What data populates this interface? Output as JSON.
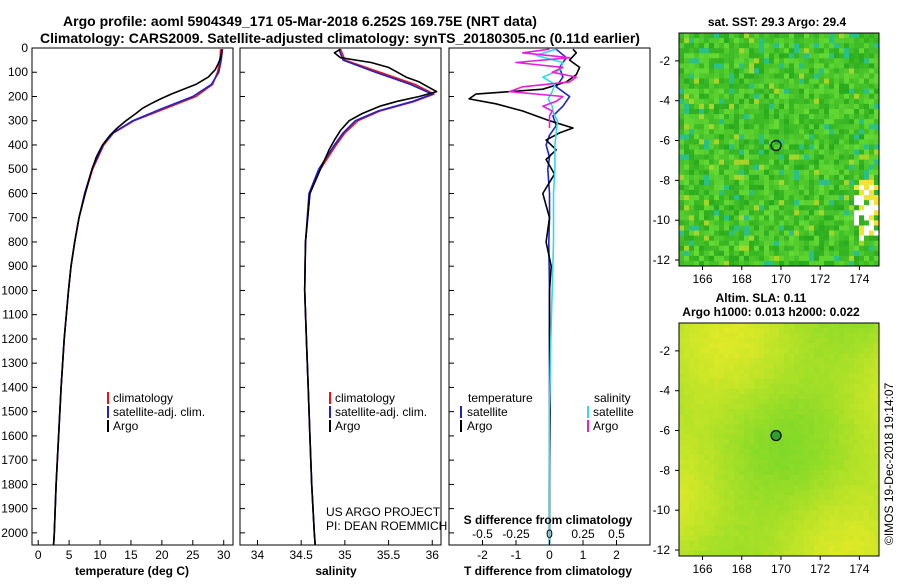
{
  "header": {
    "line1": "Argo profile: aoml 5904349_171 05-Mar-2018 6.252S 169.75E (NRT data)",
    "line2": "Climatology: CARS2009. Satellite-adjusted climatology: synTS_20180305.nc (0.11d earlier)"
  },
  "colors": {
    "climatology": "#ee1111",
    "satellite": "#1f22cc",
    "argo": "#000000",
    "sal_satellite": "#33d9e6",
    "sal_argo": "#e61fd9"
  },
  "notes": {
    "project": "US ARGO PROJECT",
    "pi": "PI: DEAN ROEMMICH",
    "stamp": "©IMOS 19-Dec-2018 19:14:07"
  },
  "chart_data": [
    {
      "id": "temperature",
      "type": "line",
      "xlabel": "temperature (deg C)",
      "ylabel": "",
      "xlim": [
        -1,
        31.5
      ],
      "ylim": [
        2050,
        0
      ],
      "xticks": [
        "0",
        "5",
        "10",
        "15",
        "20",
        "25",
        "30"
      ],
      "yticks": [
        "0",
        "100",
        "200",
        "300",
        "400",
        "500",
        "600",
        "700",
        "800",
        "900",
        "1000",
        "1100",
        "1200",
        "1300",
        "1400",
        "1500",
        "1600",
        "1700",
        "1800",
        "1900",
        "2000"
      ],
      "legend": [
        "climatology",
        "satellite-adj. clim.",
        "Argo"
      ],
      "series": [
        {
          "name": "climatology",
          "depth": [
            5,
            50,
            100,
            150,
            200,
            250,
            300,
            350,
            400,
            500,
            600,
            700,
            800,
            900,
            1000,
            1200,
            1400,
            1600,
            1800,
            2000,
            2050
          ],
          "values": [
            29.5,
            29.4,
            29,
            28.2,
            25.5,
            20.5,
            15.5,
            12.2,
            10.6,
            8.8,
            7.6,
            6.6,
            5.9,
            5.3,
            4.9,
            4.2,
            3.7,
            3.3,
            2.9,
            2.6,
            2.5
          ]
        },
        {
          "name": "satellite-adj. clim.",
          "depth": [
            5,
            50,
            100,
            150,
            200,
            250,
            300,
            350,
            400,
            500,
            600,
            700,
            800,
            900,
            1000,
            1200,
            1400,
            1600,
            1800,
            2000,
            2050
          ],
          "values": [
            29.8,
            29.6,
            29.2,
            28,
            25,
            20,
            15.3,
            12.1,
            10.5,
            8.7,
            7.5,
            6.6,
            5.9,
            5.3,
            4.9,
            4.2,
            3.7,
            3.3,
            2.9,
            2.6,
            2.5
          ]
        },
        {
          "name": "Argo",
          "depth": [
            5,
            30,
            60,
            90,
            120,
            150,
            170,
            190,
            210,
            230,
            250,
            270,
            300,
            330,
            360,
            400,
            450,
            500,
            600,
            700,
            800,
            900,
            1000,
            1200,
            1400,
            1600,
            1800,
            2000,
            2050
          ],
          "values": [
            29.7,
            29.6,
            29.2,
            28.6,
            27.5,
            25.5,
            23.5,
            21.5,
            19.8,
            18.2,
            16.8,
            15.8,
            14.2,
            12.8,
            11.6,
            10.4,
            9.4,
            8.7,
            7.6,
            6.6,
            5.9,
            5.3,
            4.9,
            4.2,
            3.7,
            3.3,
            2.9,
            2.6,
            2.5
          ]
        }
      ]
    },
    {
      "id": "salinity",
      "type": "line",
      "xlabel": "salinity",
      "ylabel": "",
      "xlim": [
        33.8,
        36.1
      ],
      "ylim": [
        2050,
        0
      ],
      "xticks": [
        "34",
        "34.5",
        "35",
        "35.5",
        "36"
      ],
      "legend": [
        "climatology",
        "satellite-adj. clim.",
        "Argo"
      ],
      "series": [
        {
          "name": "climatology",
          "depth": [
            5,
            50,
            100,
            150,
            190,
            220,
            260,
            300,
            350,
            400,
            500,
            600,
            800,
            1000,
            1200,
            1400,
            1600,
            1800,
            2000,
            2050
          ],
          "values": [
            34.95,
            35.0,
            35.4,
            35.8,
            36.02,
            35.8,
            35.4,
            35.15,
            35.0,
            34.9,
            34.72,
            34.6,
            34.55,
            34.54,
            34.56,
            34.58,
            34.6,
            34.62,
            34.65,
            34.66
          ]
        },
        {
          "name": "satellite-adj. clim.",
          "depth": [
            5,
            50,
            100,
            150,
            190,
            220,
            260,
            300,
            350,
            400,
            500,
            600,
            800,
            1000,
            1200,
            1400,
            1600,
            1800,
            2000,
            2050
          ],
          "values": [
            34.93,
            34.98,
            35.35,
            35.75,
            36.0,
            35.78,
            35.38,
            35.12,
            34.98,
            34.88,
            34.7,
            34.59,
            34.55,
            34.54,
            34.56,
            34.58,
            34.6,
            34.62,
            34.65,
            34.66
          ]
        },
        {
          "name": "Argo",
          "depth": [
            5,
            20,
            40,
            60,
            80,
            100,
            120,
            140,
            160,
            180,
            200,
            220,
            240,
            270,
            300,
            340,
            380,
            420,
            500,
            600,
            800,
            1000,
            1200,
            1400,
            1600,
            1800,
            2000,
            2050
          ],
          "values": [
            34.95,
            34.88,
            34.95,
            35.3,
            35.5,
            35.6,
            35.7,
            35.85,
            35.95,
            36.05,
            35.85,
            35.6,
            35.4,
            35.2,
            35.05,
            34.95,
            34.88,
            34.82,
            34.72,
            34.6,
            34.55,
            34.54,
            34.56,
            34.58,
            34.6,
            34.62,
            34.65,
            34.66
          ]
        }
      ]
    },
    {
      "id": "difference",
      "type": "line",
      "xlabel": "T difference from climatology",
      "xlabel2": "S difference from climatology",
      "xlim": [
        -3,
        3
      ],
      "ylim": [
        2050,
        0
      ],
      "xticks": [
        "-2",
        "-1",
        "0",
        "1",
        "2"
      ],
      "xticks2": [
        "-0.5",
        "-0.25",
        "0",
        "0.25",
        "0.5"
      ],
      "legend_left_title": "temperature",
      "legend_right_title": "salinity",
      "legend_left": [
        "satellite",
        "Argo"
      ],
      "legend_right": [
        "satellite",
        "Argo"
      ],
      "series": [
        {
          "name": "T satellite",
          "depth": [
            5,
            40,
            80,
            120,
            160,
            200,
            240,
            280,
            320,
            360,
            400,
            450,
            500,
            600,
            700,
            800,
            1000,
            1200,
            1500,
            1800,
            2050
          ],
          "values": [
            0.2,
            0.5,
            0.3,
            0.4,
            0.2,
            0.6,
            0.4,
            0.1,
            0.2,
            0.0,
            -0.1,
            0.0,
            -0.05,
            0.0,
            0.0,
            -0.02,
            0.0,
            0.0,
            0.0,
            0.0,
            0.0
          ]
        },
        {
          "name": "T Argo",
          "depth": [
            5,
            20,
            50,
            80,
            110,
            140,
            170,
            190,
            210,
            230,
            260,
            300,
            330,
            350,
            380,
            420,
            460,
            520,
            600,
            700,
            800,
            900,
            1000,
            1200,
            1500,
            1800,
            2050
          ],
          "values": [
            0.7,
            0.8,
            0.6,
            0.9,
            0.8,
            0.5,
            -0.2,
            -2.2,
            -2.4,
            -1.6,
            -0.8,
            0.0,
            0.7,
            0.3,
            -0.1,
            0.2,
            -0.1,
            0.15,
            -0.2,
            0.0,
            -0.1,
            0.05,
            0.0,
            0.0,
            0.02,
            0.0,
            0.0
          ]
        },
        {
          "name": "S satellite",
          "depth": [
            5,
            30,
            60,
            90,
            120,
            150,
            180,
            210,
            240,
            270,
            300,
            350,
            400,
            500,
            600,
            800,
            1000,
            1200,
            1500,
            1800,
            2050
          ],
          "values": [
            0.05,
            -0.1,
            0.1,
            0.08,
            -0.05,
            0.04,
            0.02,
            -0.01,
            0.02,
            0.03,
            0.06,
            0.05,
            0.04,
            0.04,
            0.03,
            0.03,
            0.02,
            0.01,
            0.0,
            0.0,
            0.0
          ]
        },
        {
          "name": "S Argo",
          "depth": [
            5,
            20,
            40,
            60,
            80,
            100,
            120,
            140,
            160,
            180,
            200,
            220,
            240,
            260,
            280,
            300,
            330
          ],
          "values": [
            0.0,
            -0.2,
            0.15,
            -0.25,
            0.1,
            0.02,
            0.2,
            0.15,
            -0.2,
            -0.3,
            0.1,
            0.05,
            -0.05,
            0.02,
            0.0,
            0.0,
            0.0
          ]
        }
      ]
    },
    {
      "id": "sst-map",
      "type": "heatmap",
      "title": "sat. SST: 29.3 Argo: 29.4",
      "xticks": [
        "166",
        "168",
        "170",
        "172",
        "174"
      ],
      "yticks": [
        "-2",
        "-4",
        "-6",
        "-8",
        "-10",
        "-12"
      ],
      "xlim": [
        164.8,
        175
      ],
      "ylim": [
        -12.3,
        -0.6
      ],
      "marker": {
        "lon": 169.75,
        "lat": -6.252
      }
    },
    {
      "id": "sla-map",
      "type": "heatmap",
      "title": "Altim. SLA: 0.11",
      "subtitle": "Argo h1000: 0.013 h2000: 0.022",
      "xticks": [
        "166",
        "168",
        "170",
        "172",
        "174"
      ],
      "yticks": [
        "-2",
        "-4",
        "-6",
        "-8",
        "-10",
        "-12"
      ],
      "xlim": [
        164.8,
        175
      ],
      "ylim": [
        -12.3,
        -0.6
      ],
      "marker": {
        "lon": 169.75,
        "lat": -6.252
      }
    }
  ]
}
